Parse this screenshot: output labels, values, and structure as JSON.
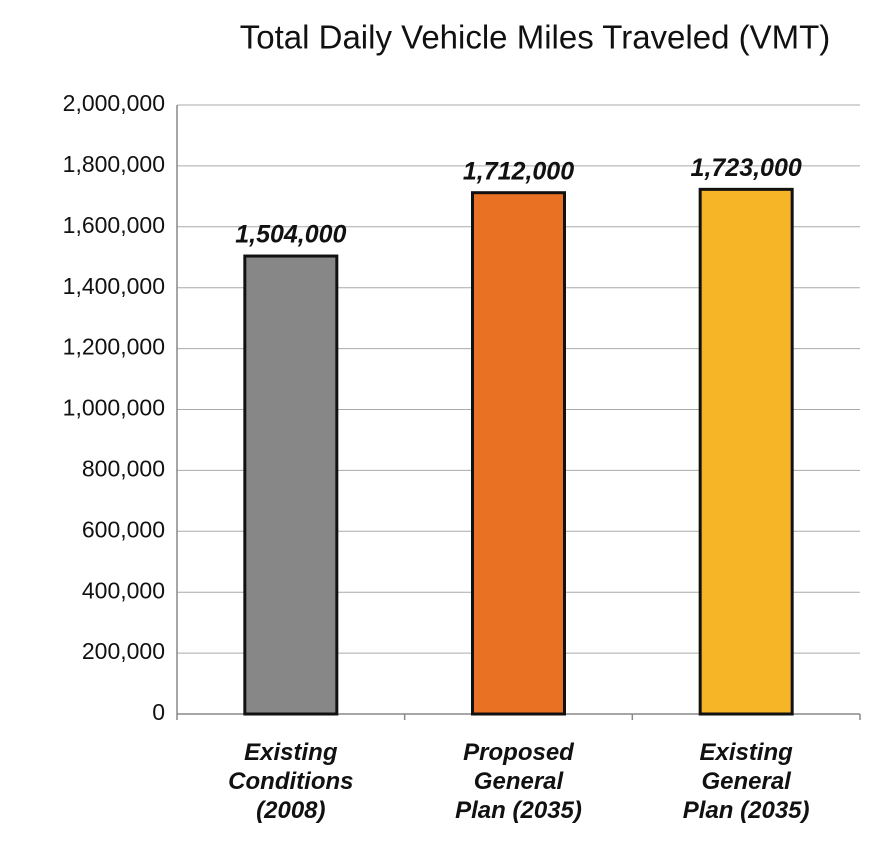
{
  "chart_data": {
    "type": "bar",
    "title": "Total Daily Vehicle Miles Traveled (VMT)",
    "categories": [
      "Existing Conditions (2008)",
      "Proposed General Plan (2035)",
      "Existing General Plan (2035)"
    ],
    "values": [
      1504000,
      1712000,
      1723000
    ],
    "value_labels": [
      "1,504,000",
      "1,712,000",
      "1,723,000"
    ],
    "colors": [
      "#878787",
      "#e87124",
      "#f5b526"
    ],
    "ylim": [
      0,
      2000000
    ],
    "yticks": [
      0,
      {
        "value": 200000,
        "label": "200,000"
      },
      {
        "value": 400000,
        "label": "400,000"
      },
      {
        "value": 600000,
        "label": "600,000"
      },
      {
        "value": 800000,
        "label": "800,000"
      },
      {
        "value": 1000000,
        "label": "1,000,000"
      },
      {
        "value": 1200000,
        "label": "1,200,000"
      },
      {
        "value": 1400000,
        "label": "1,400,000"
      },
      {
        "value": 1600000,
        "label": "1,600,000"
      },
      {
        "value": 1800000,
        "label": "1,800,000"
      },
      {
        "value": 2000000,
        "label": "2,000,000"
      }
    ],
    "grid": true
  }
}
